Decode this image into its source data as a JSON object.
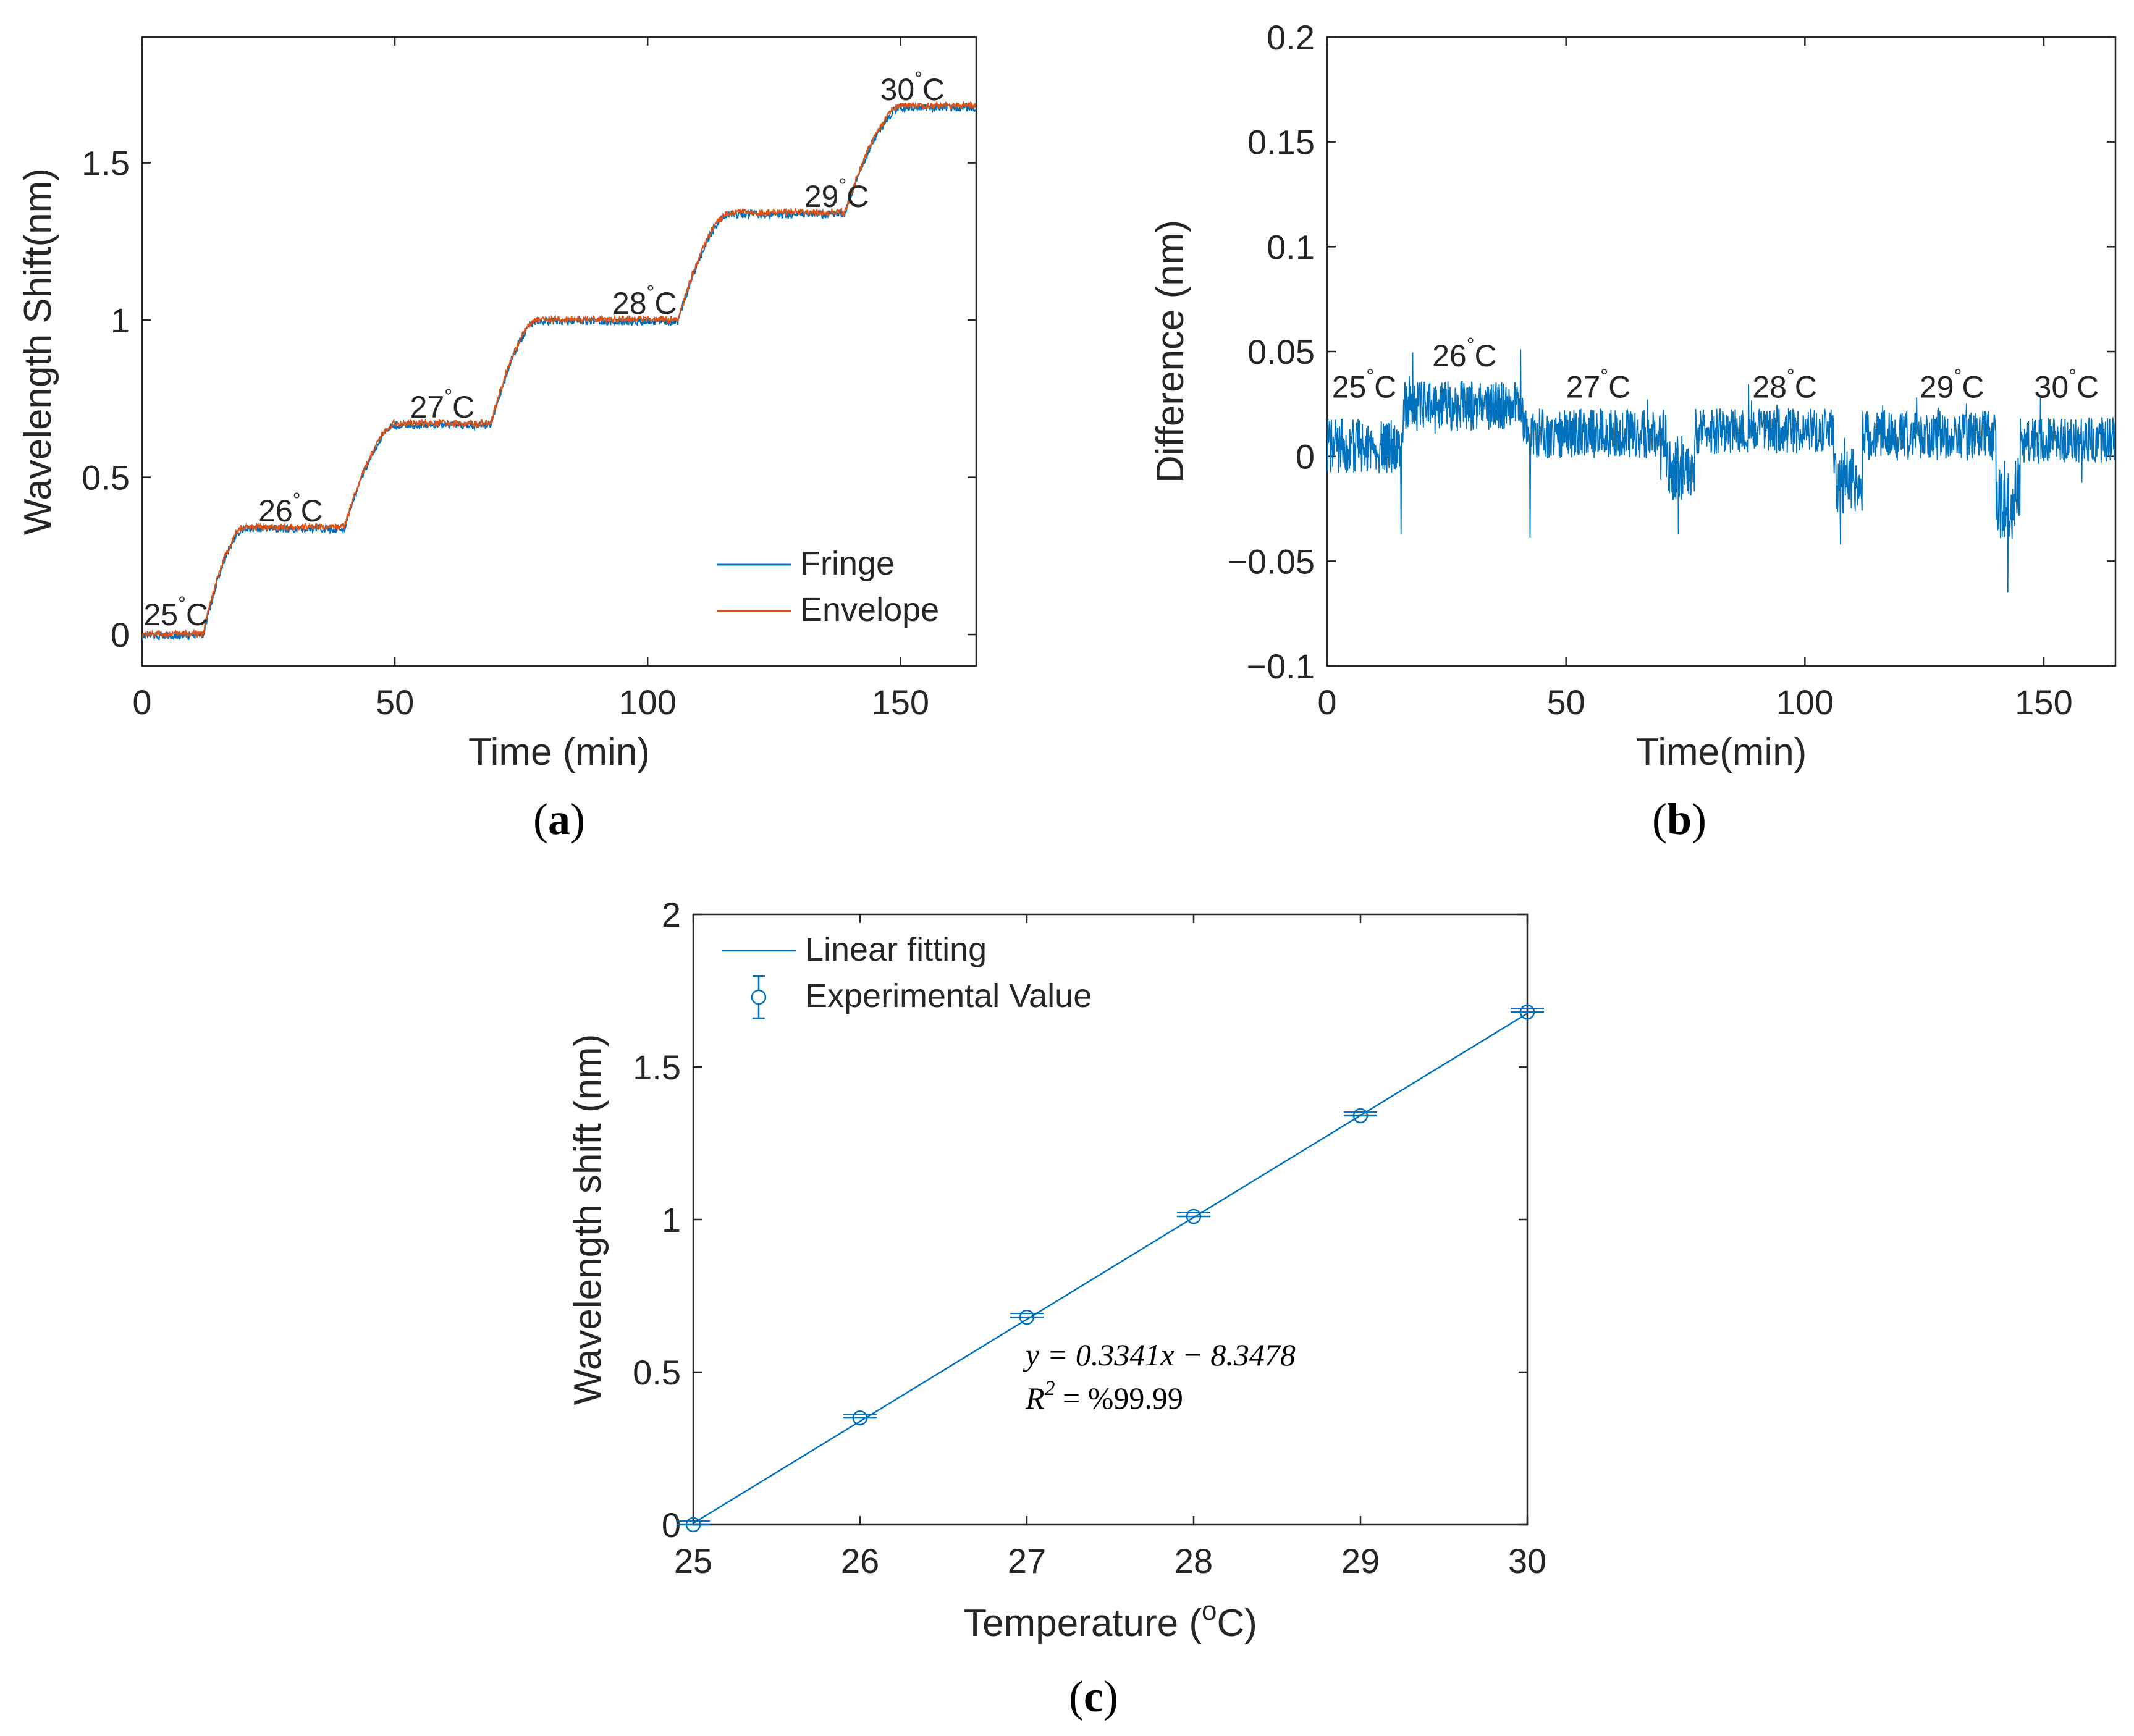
{
  "chart_data": [
    {
      "id": "a",
      "type": "line",
      "panel_label": "a",
      "xlabel": "Time (min)",
      "ylabel": "Wavelength Shift(nm)",
      "xlim": [
        0,
        165
      ],
      "ylim": [
        -0.1,
        1.9
      ],
      "xticks": [
        0,
        50,
        100,
        150
      ],
      "yticks": [
        0,
        0.5,
        1,
        1.5
      ],
      "ytick_labels": [
        "0",
        "0.5",
        "1",
        "1.5"
      ],
      "legend": {
        "position": "bottom-right",
        "entries": [
          "Fringe",
          "Envelope"
        ]
      },
      "series": [
        {
          "name": "Fringe",
          "color": "#0072BD",
          "noise": 0.012
        },
        {
          "name": "Envelope",
          "color": "#D95319",
          "noise": 0.01
        }
      ],
      "steps": [
        {
          "temp": "25",
          "start": 0,
          "end": 12,
          "level": 0.0
        },
        {
          "temp": "26",
          "start": 20,
          "end": 40,
          "level": 0.34
        },
        {
          "temp": "27",
          "start": 50,
          "end": 69,
          "level": 0.67
        },
        {
          "temp": "28",
          "start": 78,
          "end": 106,
          "level": 1.0
        },
        {
          "temp": "29",
          "start": 116,
          "end": 139,
          "level": 1.34
        },
        {
          "temp": "30",
          "start": 150,
          "end": 165,
          "level": 1.68
        }
      ],
      "annotations": [
        {
          "text": "25",
          "unit": "C",
          "x": 0.3,
          "y": 0.03
        },
        {
          "text": "26",
          "unit": "C",
          "x": 23,
          "y": 0.36
        },
        {
          "text": "27",
          "unit": "C",
          "x": 53,
          "y": 0.69
        },
        {
          "text": "28",
          "unit": "C",
          "x": 93,
          "y": 1.02
        },
        {
          "text": "29",
          "unit": "C",
          "x": 131,
          "y": 1.36
        },
        {
          "text": "30",
          "unit": "C",
          "x": 146,
          "y": 1.7
        }
      ]
    },
    {
      "id": "b",
      "type": "line",
      "panel_label": "b",
      "xlabel": "Time(min)",
      "ylabel": "Difference (nm)",
      "xlim": [
        0,
        165
      ],
      "ylim": [
        -0.1,
        0.2
      ],
      "xticks": [
        0,
        50,
        100,
        150
      ],
      "yticks": [
        -0.1,
        -0.05,
        0,
        0.05,
        0.1,
        0.15,
        0.2
      ],
      "ytick_labels": [
        "−0.1",
        "−0.05",
        "0",
        "0.05",
        "0.1",
        "0.15",
        "0.2"
      ],
      "series": [
        {
          "name": "Difference",
          "color": "#0072BD"
        }
      ],
      "segments": [
        {
          "start": 0,
          "end": 16,
          "mean": 0.005,
          "amp": 0.013
        },
        {
          "start": 16,
          "end": 41,
          "mean": 0.024,
          "amp": 0.012
        },
        {
          "start": 41,
          "end": 71,
          "mean": 0.011,
          "amp": 0.012
        },
        {
          "start": 71,
          "end": 77,
          "mean": -0.005,
          "amp": 0.016
        },
        {
          "start": 77,
          "end": 106,
          "mean": 0.012,
          "amp": 0.011
        },
        {
          "start": 106,
          "end": 112,
          "mean": -0.012,
          "amp": 0.016
        },
        {
          "start": 112,
          "end": 140,
          "mean": 0.01,
          "amp": 0.012
        },
        {
          "start": 140,
          "end": 145,
          "mean": -0.02,
          "amp": 0.02
        },
        {
          "start": 145,
          "end": 165,
          "mean": 0.008,
          "amp": 0.011
        }
      ],
      "spikes": [
        {
          "x": 42.5,
          "y": -0.039
        },
        {
          "x": 15.5,
          "y": -0.037
        },
        {
          "x": 107.5,
          "y": -0.042
        },
        {
          "x": 142.5,
          "y": -0.065
        },
        {
          "x": 73.5,
          "y": -0.037
        },
        {
          "x": 40.5,
          "y": 0.051
        }
      ],
      "annotations": [
        {
          "text": "25",
          "unit": "C",
          "x": 1,
          "y": 0.028
        },
        {
          "text": "26",
          "unit": "C",
          "x": 22,
          "y": 0.043
        },
        {
          "text": "27",
          "unit": "C",
          "x": 50,
          "y": 0.028
        },
        {
          "text": "28",
          "unit": "C",
          "x": 89,
          "y": 0.028
        },
        {
          "text": "29",
          "unit": "C",
          "x": 124,
          "y": 0.028
        },
        {
          "text": "30",
          "unit": "C",
          "x": 148,
          "y": 0.028
        }
      ]
    },
    {
      "id": "c",
      "type": "scatter",
      "panel_label": "c",
      "xlabel": "Temperature (",
      "xlabel_unit_sup": "o",
      "xlabel_tail": "C)",
      "ylabel": "Wavelength shift (nm)",
      "xlim": [
        25,
        30
      ],
      "ylim": [
        0,
        2
      ],
      "xticks": [
        25,
        26,
        27,
        28,
        29,
        30
      ],
      "yticks": [
        0,
        0.5,
        1,
        1.5,
        2
      ],
      "ytick_labels": [
        "0",
        "0.5",
        "1",
        "1.5",
        "2"
      ],
      "legend": {
        "position": "top-left",
        "entries": [
          "Linear fitting",
          "Experimental Value"
        ]
      },
      "series": [
        {
          "name": "Experimental Value",
          "color": "#0072BD",
          "x": [
            25,
            26,
            27,
            28,
            29,
            30
          ],
          "y": [
            0.0,
            0.35,
            0.68,
            1.01,
            1.34,
            1.68
          ],
          "xerr": 0.1
        },
        {
          "name": "Linear fitting",
          "color": "#0072BD",
          "slope": 0.3341,
          "intercept": -8.3478
        }
      ],
      "equation": "y = 0.3341x − 8.3478",
      "r2_label": "R",
      "r2_sup": "2",
      "r2_value": " = %99.99"
    }
  ]
}
